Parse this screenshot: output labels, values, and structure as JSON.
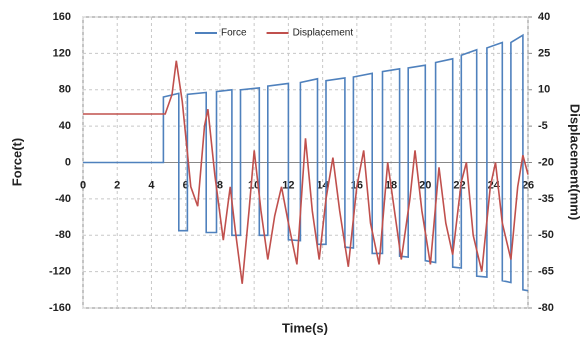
{
  "chart_data": {
    "type": "line",
    "x_label": "Time(s)",
    "y_label": "Force(t)",
    "y2_label": "Displacement(mm)",
    "xlim": [
      0,
      26
    ],
    "xticks": [
      0,
      2,
      4,
      6,
      8,
      10,
      12,
      14,
      16,
      18,
      20,
      22,
      24,
      26
    ],
    "ylim": [
      -160,
      160
    ],
    "yticks": [
      -160,
      -120,
      -80,
      -40,
      0,
      40,
      80,
      120,
      160
    ],
    "y2lim": [
      -80,
      40
    ],
    "y2ticks": [
      -80,
      -65,
      -50,
      -35,
      -20,
      -5,
      10,
      25,
      40
    ],
    "grid": true,
    "legend": "top",
    "series": [
      {
        "name": "Force",
        "color": "#4f81bd",
        "axis": "y",
        "x": [
          0,
          4.7,
          4.7,
          5.6,
          5.6,
          6.1,
          6.1,
          7.2,
          7.2,
          7.8,
          7.8,
          8.7,
          8.7,
          9.2,
          9.2,
          10.3,
          10.3,
          10.8,
          10.8,
          12.0,
          12.0,
          12.7,
          12.7,
          13.7,
          13.7,
          14.2,
          14.2,
          15.3,
          15.3,
          15.8,
          15.8,
          16.9,
          16.9,
          17.5,
          17.5,
          18.5,
          18.5,
          19.0,
          19.0,
          20.0,
          20.0,
          20.6,
          20.6,
          21.6,
          21.6,
          22.1,
          22.1,
          23.0,
          23.0,
          23.6,
          23.6,
          24.5,
          24.5,
          25.0,
          25.0,
          25.7,
          25.7,
          26
        ],
        "values": [
          0,
          0,
          72,
          76,
          -75,
          -75,
          75,
          77,
          -77,
          -77,
          78,
          80,
          -80,
          -80,
          80,
          82,
          -80,
          -80,
          84,
          87,
          -85,
          -86,
          88,
          92,
          -90,
          -90,
          90,
          93,
          -93,
          -94,
          94,
          98,
          -100,
          -100,
          100,
          103,
          -103,
          -104,
          104,
          107,
          -108,
          -110,
          110,
          114,
          -115,
          -116,
          118,
          124,
          -125,
          -126,
          126,
          132,
          -130,
          -132,
          132,
          140,
          -140,
          -141
        ]
      },
      {
        "name": "Displacement",
        "color": "#c0504d",
        "axis": "y2",
        "x": [
          0,
          4.8,
          5.2,
          5.45,
          5.8,
          6.3,
          6.7,
          7.1,
          7.3,
          7.7,
          8.2,
          8.6,
          8.9,
          9.3,
          9.7,
          10.0,
          10.4,
          10.8,
          11.2,
          11.6,
          12.0,
          12.5,
          13.0,
          13.4,
          13.8,
          14.2,
          14.6,
          15.0,
          15.5,
          16.0,
          16.4,
          16.8,
          17.3,
          17.8,
          18.2,
          18.6,
          19.1,
          19.4,
          19.8,
          20.3,
          20.8,
          21.2,
          21.6,
          22.1,
          22.4,
          22.8,
          23.3,
          23.8,
          24.1,
          24.5,
          25.0,
          25.4,
          25.7,
          26.0
        ],
        "values": [
          0,
          0,
          8,
          22,
          5,
          -30,
          -38,
          -5,
          2,
          -25,
          -52,
          -30,
          -48,
          -70,
          -40,
          -15,
          -40,
          -60,
          -42,
          -30,
          -45,
          -62,
          -10,
          -40,
          -60,
          -35,
          -18,
          -40,
          -63,
          -30,
          -15,
          -45,
          -62,
          -20,
          -40,
          -60,
          -35,
          -15,
          -40,
          -62,
          -22,
          -45,
          -58,
          -28,
          -20,
          -50,
          -65,
          -30,
          -20,
          -45,
          -60,
          -30,
          -17,
          -25
        ]
      }
    ]
  }
}
